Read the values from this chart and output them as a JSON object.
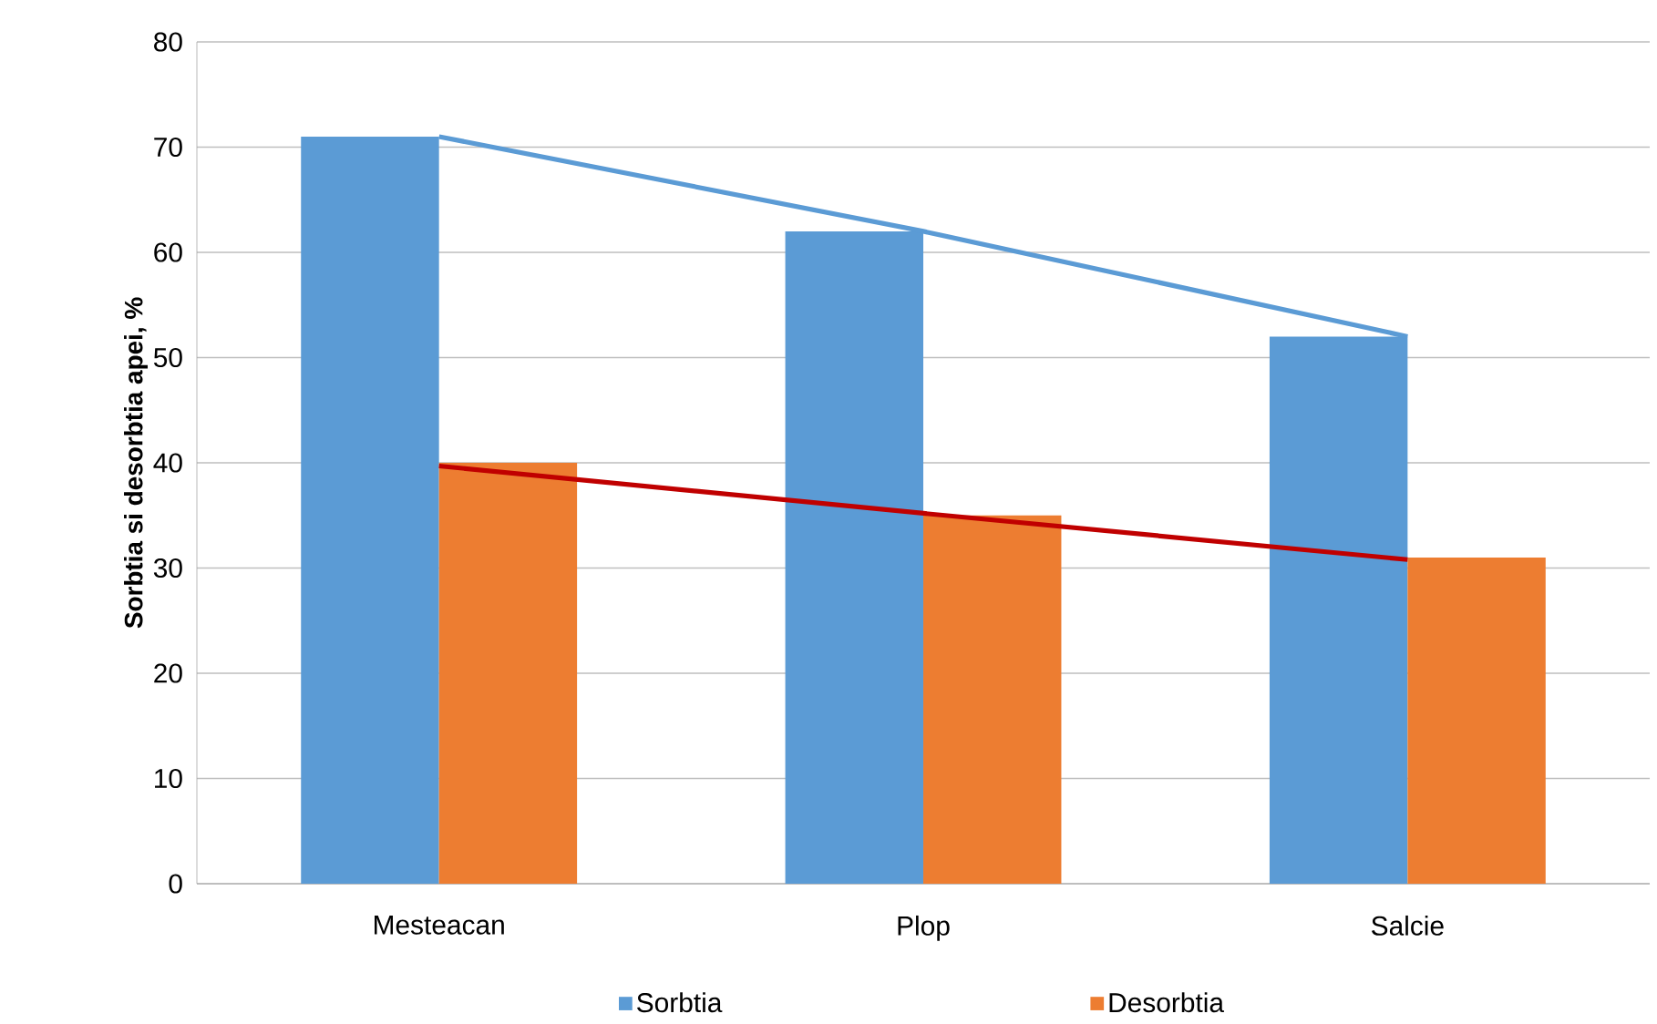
{
  "chart_data": {
    "type": "bar",
    "ylabel": "Sorbtia si desorbtia apei, %",
    "categories": [
      "Mesteacan",
      "Plop",
      "Salcie"
    ],
    "series": [
      {
        "name": "Sorbtia",
        "color": "#5b9bd5",
        "values": [
          71,
          62,
          52
        ]
      },
      {
        "name": "Desorbtia",
        "color": "#ed7d31",
        "values": [
          40,
          35,
          31
        ]
      },
      {
        "type": "line",
        "color": "#5b9bd5",
        "values": [
          71,
          62,
          52
        ]
      },
      {
        "type": "line",
        "color": "#c00000",
        "values": [
          39.7,
          35.2,
          30.8
        ]
      }
    ],
    "ylim": [
      0,
      80
    ],
    "yticks": [
      0,
      10,
      20,
      30,
      40,
      50,
      60,
      70,
      80
    ],
    "grid": "y",
    "legend": "bottom"
  }
}
